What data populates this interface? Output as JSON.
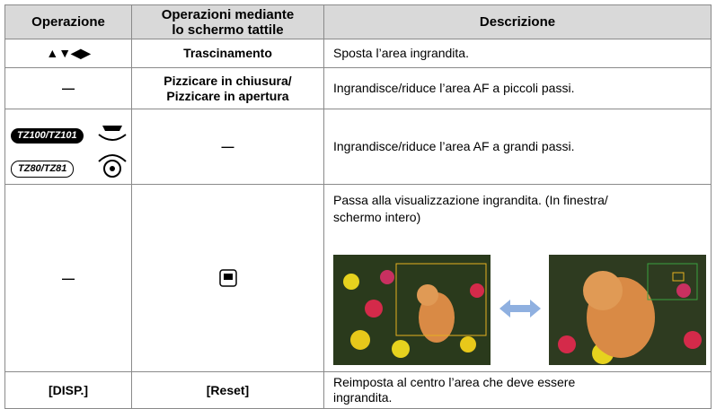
{
  "table": {
    "header": [
      "Operazione",
      "Operazioni mediante\nlo schermo tattile",
      "Descrizione"
    ],
    "rows": [
      {
        "operation": "▲▼◀▶",
        "touch": "Trascinamento",
        "description": "Sposta l’area ingrandita."
      },
      {
        "operation": "—",
        "touch": "Pizzicare in chiusura/\nPizzicare in apertura",
        "description": "Ingrandisce/riduce l’area AF a piccoli passi."
      },
      {
        "operation": [
          "TZ100/TZ101",
          "TZ80/TZ81"
        ],
        "touch": "—",
        "description": "Ingrandisce/riduce l’area AF a grandi passi."
      },
      {
        "operation": "—",
        "description": "Passa alla visualizzazione ingrandita. (In finestra/\nschermo intero)"
      },
      {
        "operation": "[DISP.]",
        "touch": "[Reset]",
        "description": "Reimposta al centro l’area che deve essere\ningrandita."
      }
    ]
  }
}
